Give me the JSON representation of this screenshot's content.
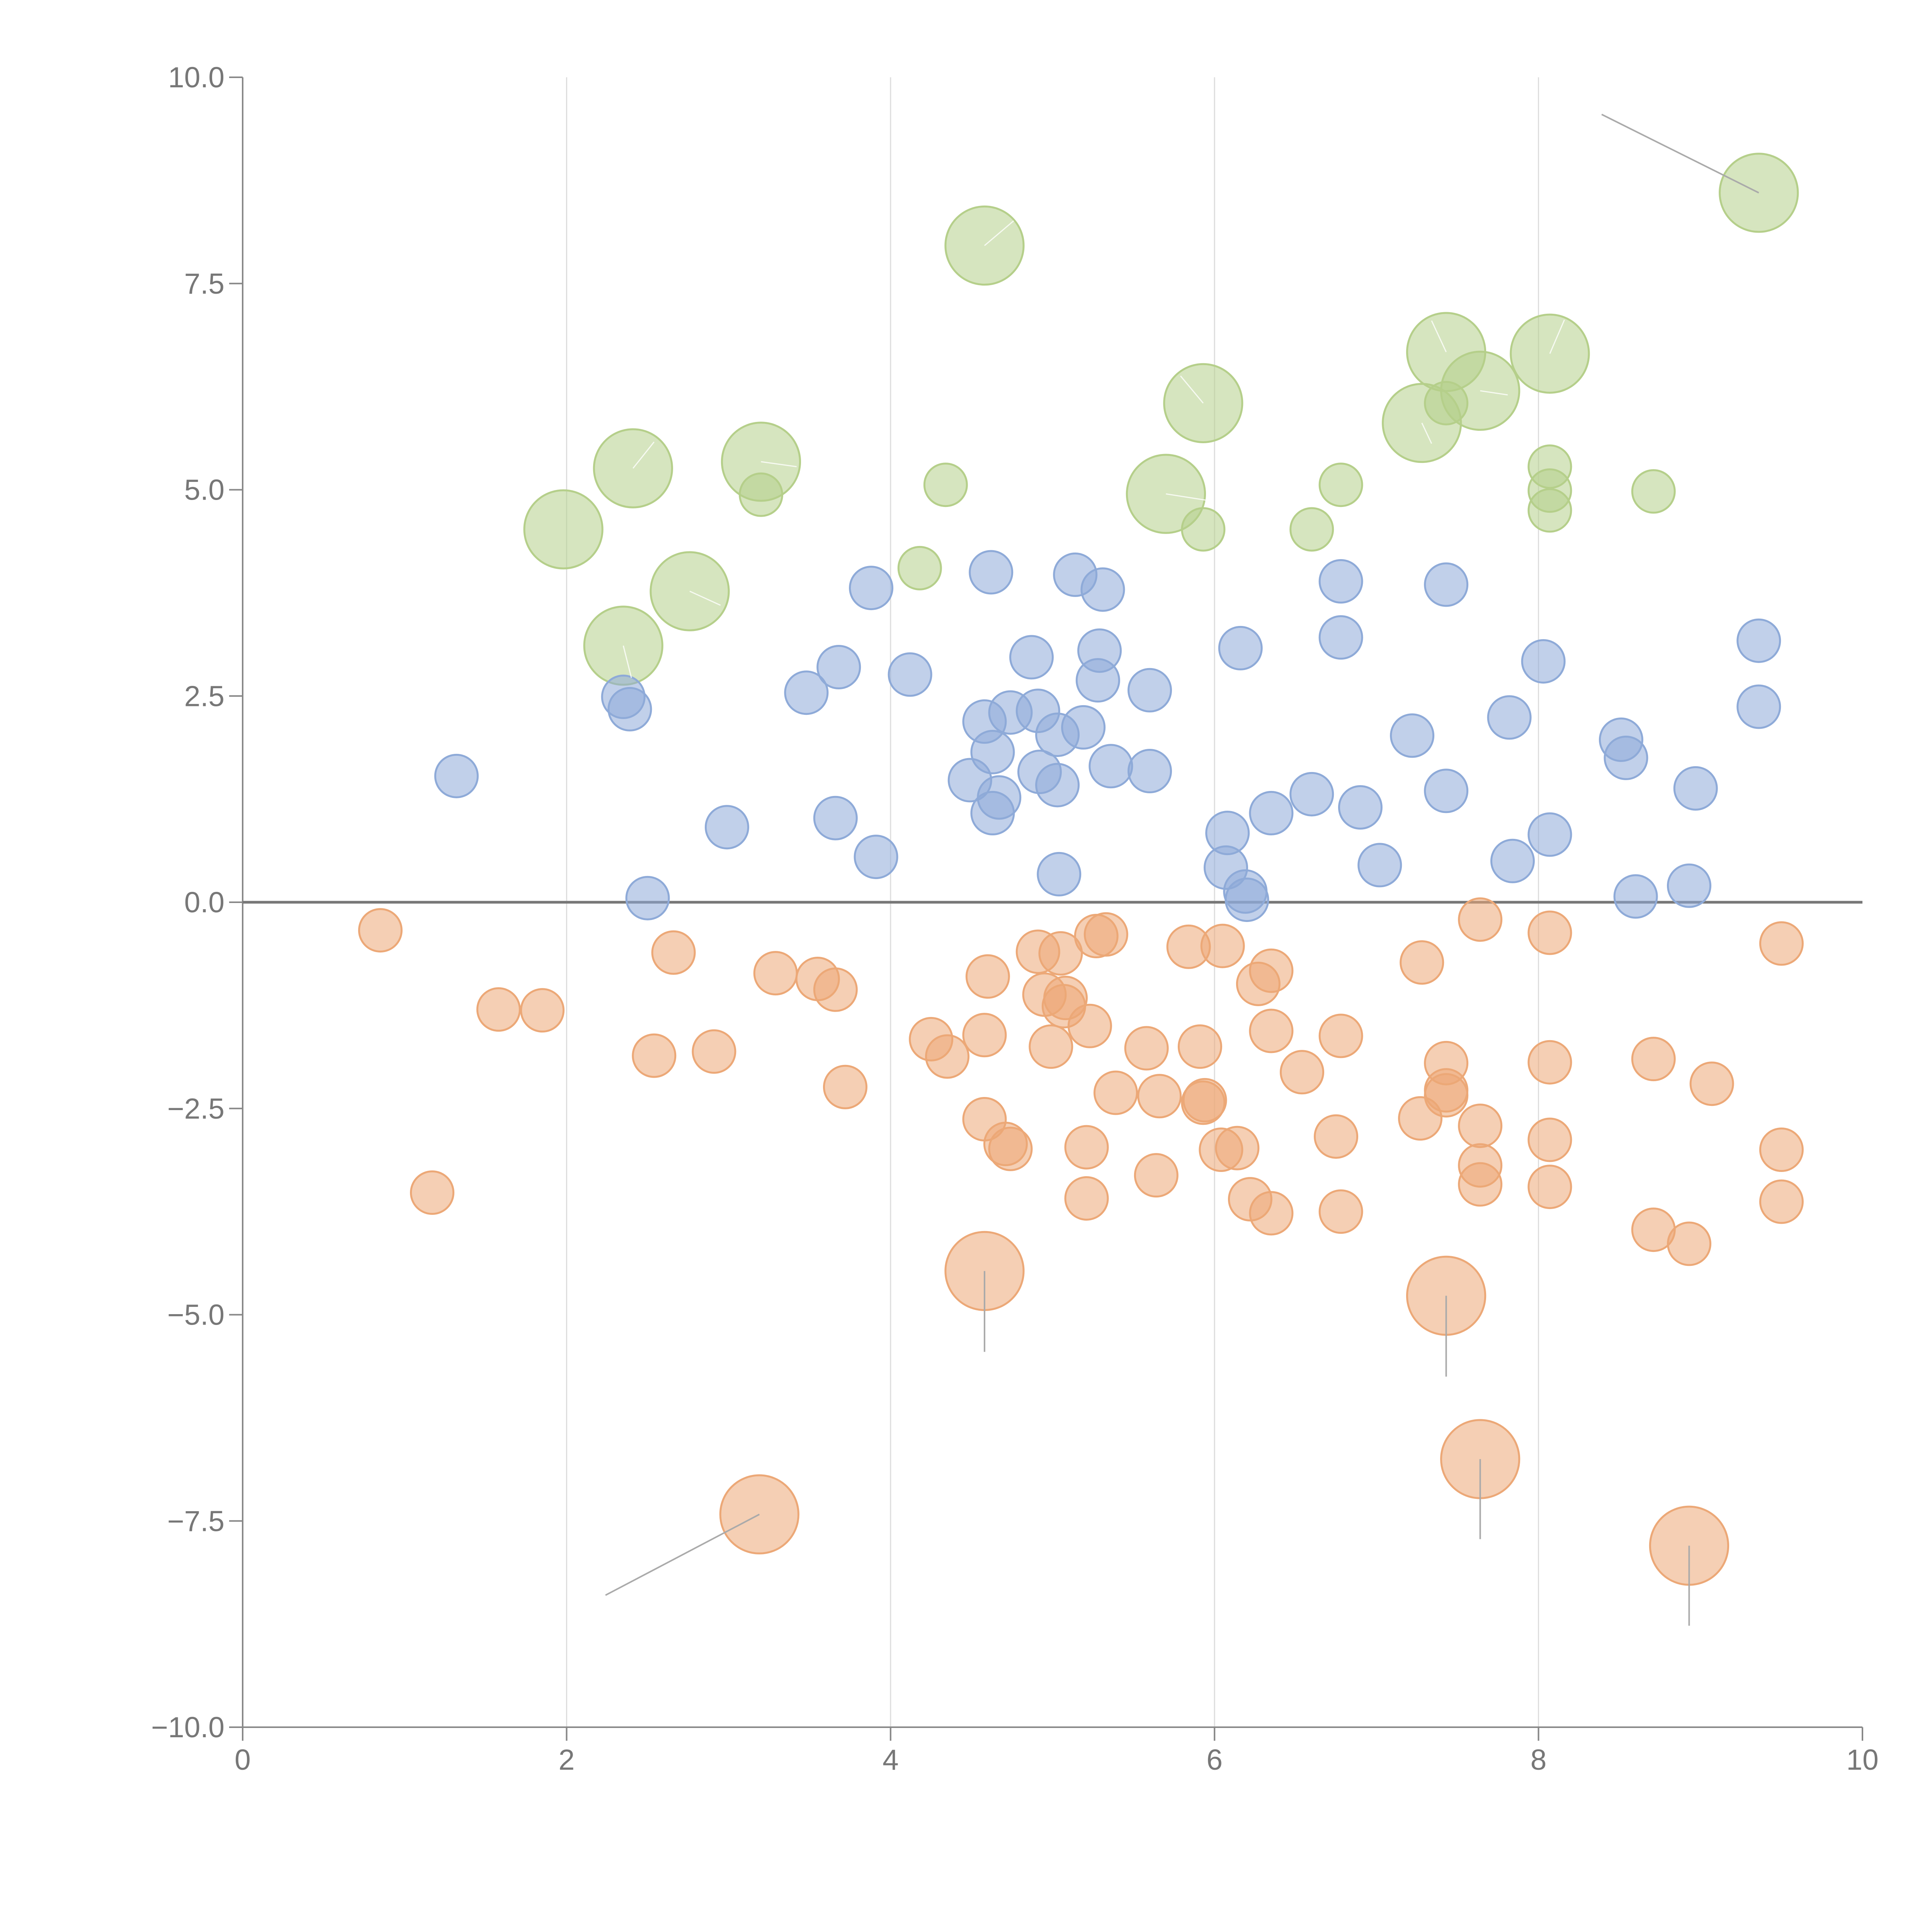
{
  "chart_data": {
    "type": "scatter",
    "title": "",
    "xlabel": "",
    "ylabel": "",
    "xlim": [
      0,
      10
    ],
    "ylim": [
      -10,
      10
    ],
    "x_ticks": [
      0,
      2,
      4,
      6,
      8,
      10
    ],
    "x_tick_labels": [
      "0",
      "2",
      "4",
      "6",
      "8",
      "10"
    ],
    "y_ticks": [
      -10,
      -7.5,
      -5,
      -2.5,
      0,
      2.5,
      5,
      7.5,
      10
    ],
    "y_tick_labels": [
      "−10.0",
      "−7.5",
      "−5.0",
      "−2.5",
      "0.0",
      "2.5",
      "5.0",
      "7.5",
      "10.0"
    ],
    "vertical_gridlines_at": [
      2,
      4,
      6,
      8
    ],
    "zero_line": 0,
    "colors": {
      "green": "#b5cf8a",
      "blue": "#8eaad8",
      "orange": "#eca877",
      "axis": "#888888",
      "grid": "#dddddd",
      "zero_line": "#777777",
      "text": "#777777",
      "leader": "#aaaaaa",
      "leader_light": "#ffffff"
    },
    "series": [
      {
        "name": "green",
        "color": "#b5cf8a",
        "points": [
          [
            1.98,
            4.52,
            2.0
          ],
          [
            2.41,
            5.26,
            2.0
          ],
          [
            2.35,
            3.11,
            2.0
          ],
          [
            2.76,
            3.77,
            2.0
          ],
          [
            3.2,
            5.34,
            2.0
          ],
          [
            4.58,
            7.96,
            2.0
          ],
          [
            5.7,
            4.95,
            2.0
          ],
          [
            5.93,
            6.05,
            2.0
          ],
          [
            7.28,
            5.81,
            2.0
          ],
          [
            7.43,
            6.67,
            2.0
          ],
          [
            7.64,
            6.2,
            2.0
          ],
          [
            8.07,
            6.65,
            2.0
          ],
          [
            9.36,
            8.6,
            2.0
          ],
          [
            3.2,
            4.94,
            1.0
          ],
          [
            4.18,
            4.05,
            1.0
          ],
          [
            4.34,
            5.06,
            1.0
          ],
          [
            5.93,
            4.52,
            1.0
          ],
          [
            6.6,
            4.52,
            1.0
          ],
          [
            6.78,
            5.06,
            1.0
          ],
          [
            7.43,
            6.05,
            1.0
          ],
          [
            8.07,
            5.28,
            1.0
          ],
          [
            8.07,
            4.99,
            1.0
          ],
          [
            8.07,
            4.75,
            1.0
          ],
          [
            8.71,
            4.98,
            1.0
          ]
        ]
      },
      {
        "name": "blue",
        "color": "#8eaad8",
        "points": [
          [
            1.32,
            1.53,
            1.0
          ],
          [
            2.35,
            2.49,
            1.0
          ],
          [
            2.39,
            2.34,
            1.0
          ],
          [
            2.5,
            0.05,
            1.0
          ],
          [
            2.99,
            0.91,
            1.0
          ],
          [
            3.48,
            2.54,
            1.0
          ],
          [
            3.66,
            1.02,
            1.0
          ],
          [
            3.68,
            2.85,
            1.0
          ],
          [
            3.88,
            3.81,
            1.0
          ],
          [
            3.91,
            0.55,
            1.0
          ],
          [
            4.12,
            2.76,
            1.0
          ],
          [
            4.49,
            1.48,
            1.0
          ],
          [
            4.58,
            2.19,
            1.0
          ],
          [
            4.62,
            4.0,
            1.0
          ],
          [
            4.63,
            1.82,
            1.0
          ],
          [
            4.63,
            1.08,
            1.0
          ],
          [
            4.67,
            1.27,
            1.0
          ],
          [
            4.74,
            2.3,
            1.0
          ],
          [
            4.87,
            2.97,
            1.0
          ],
          [
            4.91,
            2.32,
            1.0
          ],
          [
            4.92,
            1.58,
            1.0
          ],
          [
            5.03,
            2.03,
            1.0
          ],
          [
            5.03,
            1.42,
            1.0
          ],
          [
            5.04,
            0.34,
            1.0
          ],
          [
            5.14,
            3.97,
            1.0
          ],
          [
            5.19,
            2.12,
            1.0
          ],
          [
            5.28,
            2.69,
            1.0
          ],
          [
            5.29,
            3.05,
            1.0
          ],
          [
            5.31,
            3.79,
            1.0
          ],
          [
            5.36,
            1.65,
            1.0
          ],
          [
            5.6,
            2.57,
            1.0
          ],
          [
            5.6,
            1.59,
            1.0
          ],
          [
            6.08,
            0.84,
            1.0
          ],
          [
            6.07,
            0.42,
            1.0
          ],
          [
            6.16,
            3.08,
            1.0
          ],
          [
            6.19,
            0.13,
            1.0
          ],
          [
            6.2,
            0.03,
            1.0
          ],
          [
            6.35,
            1.08,
            1.0
          ],
          [
            6.6,
            1.31,
            1.0
          ],
          [
            6.78,
            3.89,
            1.0
          ],
          [
            6.78,
            3.21,
            1.0
          ],
          [
            6.9,
            1.15,
            1.0
          ],
          [
            7.02,
            0.45,
            1.0
          ],
          [
            7.22,
            2.02,
            1.0
          ],
          [
            7.43,
            3.85,
            1.0
          ],
          [
            7.43,
            1.35,
            1.0
          ],
          [
            7.82,
            2.24,
            1.0
          ],
          [
            7.84,
            0.5,
            1.0
          ],
          [
            8.03,
            2.92,
            1.0
          ],
          [
            8.07,
            0.82,
            1.0
          ],
          [
            8.51,
            1.97,
            1.0
          ],
          [
            8.54,
            1.75,
            1.0
          ],
          [
            8.6,
            0.07,
            1.0
          ],
          [
            8.93,
            0.2,
            1.0
          ],
          [
            8.97,
            1.38,
            1.0
          ],
          [
            9.36,
            3.17,
            1.0
          ],
          [
            9.36,
            2.37,
            1.0
          ]
        ]
      },
      {
        "name": "orange",
        "color": "#eca877",
        "points": [
          [
            3.19,
            -7.42,
            2.0
          ],
          [
            4.58,
            -4.47,
            2.0
          ],
          [
            7.43,
            -4.77,
            2.0
          ],
          [
            7.64,
            -6.75,
            2.0
          ],
          [
            8.93,
            -7.8,
            2.0
          ],
          [
            0.85,
            -0.34,
            1.0
          ],
          [
            1.17,
            -3.52,
            1.0
          ],
          [
            1.58,
            -1.3,
            1.0
          ],
          [
            1.85,
            -1.31,
            1.0
          ],
          [
            2.54,
            -1.86,
            1.0
          ],
          [
            2.66,
            -0.61,
            1.0
          ],
          [
            2.91,
            -1.81,
            1.0
          ],
          [
            3.29,
            -0.86,
            1.0
          ],
          [
            3.55,
            -0.93,
            1.0
          ],
          [
            3.66,
            -1.06,
            1.0
          ],
          [
            3.72,
            -2.24,
            1.0
          ],
          [
            4.25,
            -1.66,
            1.0
          ],
          [
            4.35,
            -1.87,
            1.0
          ],
          [
            4.58,
            -1.61,
            1.0
          ],
          [
            4.58,
            -2.63,
            1.0
          ],
          [
            4.6,
            -0.9,
            1.0
          ],
          [
            4.71,
            -2.93,
            1.0
          ],
          [
            4.74,
            -2.99,
            1.0
          ],
          [
            4.91,
            -0.6,
            1.0
          ],
          [
            4.95,
            -1.12,
            1.0
          ],
          [
            4.99,
            -1.75,
            1.0
          ],
          [
            5.05,
            -0.62,
            1.0
          ],
          [
            5.07,
            -1.26,
            1.0
          ],
          [
            5.08,
            -1.16,
            1.0
          ],
          [
            5.21,
            -2.97,
            1.0
          ],
          [
            5.21,
            -3.59,
            1.0
          ],
          [
            5.23,
            -1.5,
            1.0
          ],
          [
            5.27,
            -0.41,
            1.0
          ],
          [
            5.33,
            -0.39,
            1.0
          ],
          [
            5.39,
            -2.31,
            1.0
          ],
          [
            5.58,
            -1.77,
            1.0
          ],
          [
            5.64,
            -3.31,
            1.0
          ],
          [
            5.66,
            -2.35,
            1.0
          ],
          [
            5.84,
            -0.54,
            1.0
          ],
          [
            5.91,
            -1.75,
            1.0
          ],
          [
            5.93,
            -2.43,
            1.0
          ],
          [
            5.94,
            -2.4,
            1.0
          ],
          [
            6.04,
            -3.0,
            1.0
          ],
          [
            6.05,
            -0.53,
            1.0
          ],
          [
            6.14,
            -2.98,
            1.0
          ],
          [
            6.22,
            -3.6,
            1.0
          ],
          [
            6.27,
            -0.99,
            1.0
          ],
          [
            6.35,
            -0.83,
            1.0
          ],
          [
            6.35,
            -1.56,
            1.0
          ],
          [
            6.35,
            -3.77,
            1.0
          ],
          [
            6.54,
            -2.06,
            1.0
          ],
          [
            6.75,
            -2.84,
            1.0
          ],
          [
            6.78,
            -1.62,
            1.0
          ],
          [
            6.78,
            -3.75,
            1.0
          ],
          [
            7.27,
            -2.62,
            1.0
          ],
          [
            7.28,
            -0.73,
            1.0
          ],
          [
            7.43,
            -1.95,
            1.0
          ],
          [
            7.43,
            -2.28,
            1.0
          ],
          [
            7.43,
            -2.34,
            1.0
          ],
          [
            7.64,
            -0.21,
            1.0
          ],
          [
            7.64,
            -2.71,
            1.0
          ],
          [
            7.64,
            -3.19,
            1.0
          ],
          [
            7.64,
            -3.42,
            1.0
          ],
          [
            8.07,
            -0.37,
            1.0
          ],
          [
            8.07,
            -1.94,
            1.0
          ],
          [
            8.07,
            -2.88,
            1.0
          ],
          [
            8.07,
            -3.45,
            1.0
          ],
          [
            8.71,
            -1.9,
            1.0
          ],
          [
            8.71,
            -3.97,
            1.0
          ],
          [
            8.93,
            -4.14,
            1.0
          ],
          [
            9.07,
            -2.2,
            1.0
          ],
          [
            9.5,
            -0.5,
            1.0
          ],
          [
            9.5,
            -3.0,
            1.0
          ],
          [
            9.5,
            -3.63,
            1.0
          ]
        ]
      }
    ],
    "leaders": [
      {
        "x1": 9.36,
        "y1": 8.6,
        "x2": 8.39,
        "y2": 9.55,
        "style": "gray"
      },
      {
        "x1": 3.19,
        "y1": -7.42,
        "x2": 2.24,
        "y2": -8.4,
        "style": "gray"
      },
      {
        "x1": 4.58,
        "y1": -4.47,
        "x2": 4.58,
        "y2": -5.45,
        "style": "gray"
      },
      {
        "x1": 7.43,
        "y1": -4.77,
        "x2": 7.43,
        "y2": -5.75,
        "style": "gray"
      },
      {
        "x1": 7.64,
        "y1": -6.75,
        "x2": 7.64,
        "y2": -7.72,
        "style": "gray"
      },
      {
        "x1": 8.93,
        "y1": -7.8,
        "x2": 8.93,
        "y2": -8.77,
        "style": "gray"
      },
      {
        "x1": 4.58,
        "y1": 7.96,
        "x2": 4.76,
        "y2": 8.26,
        "style": "light"
      },
      {
        "x1": 2.41,
        "y1": 5.26,
        "x2": 2.54,
        "y2": 5.58,
        "style": "light"
      },
      {
        "x1": 2.35,
        "y1": 3.11,
        "x2": 2.4,
        "y2": 2.72,
        "style": "light"
      },
      {
        "x1": 2.76,
        "y1": 3.77,
        "x2": 2.95,
        "y2": 3.6,
        "style": "light"
      },
      {
        "x1": 3.2,
        "y1": 5.34,
        "x2": 3.42,
        "y2": 5.28,
        "style": "light"
      },
      {
        "x1": 5.7,
        "y1": 4.95,
        "x2": 5.96,
        "y2": 4.87,
        "style": "light"
      },
      {
        "x1": 5.93,
        "y1": 6.05,
        "x2": 5.79,
        "y2": 6.38,
        "style": "light"
      },
      {
        "x1": 7.28,
        "y1": 5.81,
        "x2": 7.34,
        "y2": 5.56,
        "style": "light"
      },
      {
        "x1": 7.43,
        "y1": 6.67,
        "x2": 7.34,
        "y2": 7.05,
        "style": "light"
      },
      {
        "x1": 7.64,
        "y1": 6.2,
        "x2": 7.81,
        "y2": 6.15,
        "style": "light"
      },
      {
        "x1": 8.07,
        "y1": 6.65,
        "x2": 8.16,
        "y2": 7.06,
        "style": "light"
      }
    ]
  }
}
